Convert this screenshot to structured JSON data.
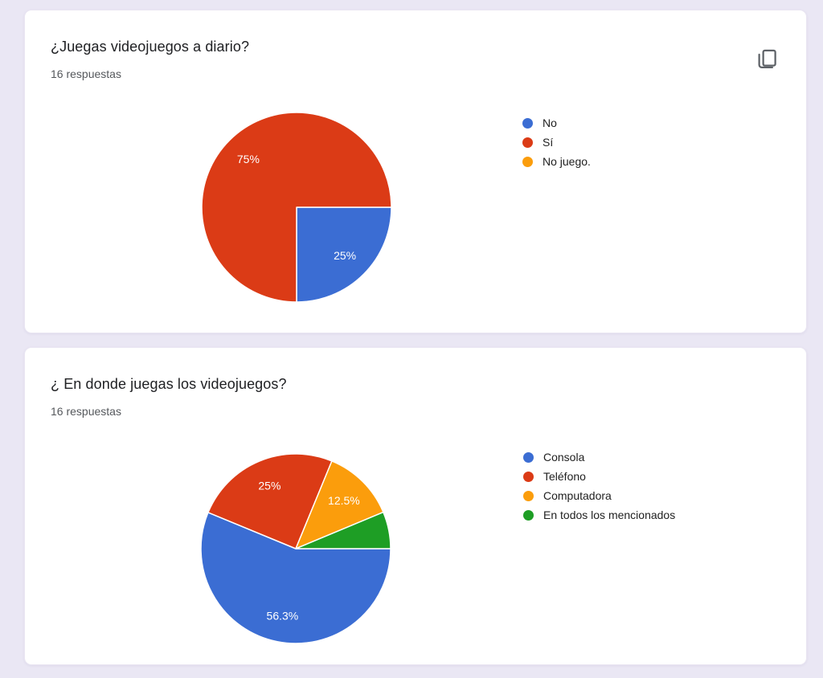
{
  "page": {
    "background_color": "#EAE7F4",
    "card_background": "#FFFFFF"
  },
  "cards": [
    {
      "title": "¿Juegas videojuegos a diario?",
      "subtitle": "16 respuestas",
      "has_copy_button": true,
      "chart_data": {
        "type": "pie",
        "title": "¿Juegas videojuegos a diario?",
        "responses": 16,
        "start_angle_deg": 0,
        "direction": "clockwise",
        "legend_position": "right",
        "slices": [
          {
            "label": "No",
            "percent": 25,
            "value_label": "25%",
            "color": "#3B6DD3",
            "show_label": true
          },
          {
            "label": "Sí",
            "percent": 75,
            "value_label": "75%",
            "color": "#DB3B16",
            "show_label": true
          },
          {
            "label": "No juego.",
            "percent": 0,
            "value_label": "",
            "color": "#FB9D0C",
            "show_label": false
          }
        ]
      }
    },
    {
      "title": "¿ En donde juegas los videojuegos?",
      "subtitle": "16 respuestas",
      "has_copy_button": false,
      "chart_data": {
        "type": "pie",
        "title": "¿ En donde juegas los videojuegos?",
        "responses": 16,
        "start_angle_deg": 0,
        "direction": "clockwise",
        "legend_position": "right",
        "slices": [
          {
            "label": "Consola",
            "percent": 56.3,
            "value_label": "56.3%",
            "color": "#3B6DD3",
            "show_label": true
          },
          {
            "label": "Teléfono",
            "percent": 25,
            "value_label": "25%",
            "color": "#DB3B16",
            "show_label": true
          },
          {
            "label": "Computadora",
            "percent": 12.5,
            "value_label": "12.5%",
            "color": "#FB9D0C",
            "show_label": true
          },
          {
            "label": "En todos los mencionados",
            "percent": 6.3,
            "value_label": "",
            "color": "#1E9E25",
            "show_label": false
          }
        ]
      }
    }
  ]
}
